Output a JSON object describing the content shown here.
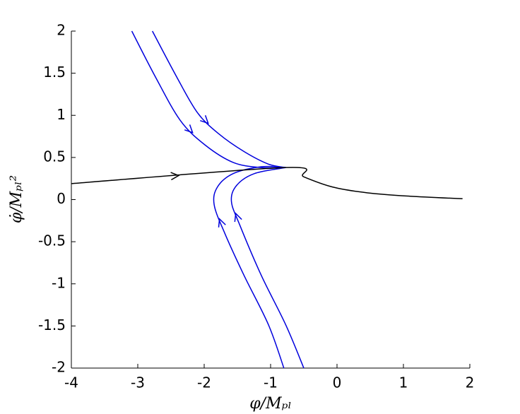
{
  "chart_data": {
    "type": "line",
    "xlabel": "φ/Mₚₗ",
    "ylabel": "φ̇/Mₚₗ²",
    "xlim": [
      -4,
      2
    ],
    "xticks": [
      -4,
      -3,
      -2,
      -1,
      0,
      1,
      2
    ],
    "ylim": [
      -2,
      2
    ],
    "yticks": [
      -2,
      -1.5,
      -1,
      -0.5,
      0,
      0.5,
      1,
      1.5,
      2
    ],
    "series": [
      {
        "color": "#0000dd",
        "x": [
          -3.09,
          -2.73,
          -2.36,
          -1.99,
          -1.56,
          -1.14,
          -0.77
        ],
        "values": [
          2,
          1.45,
          0.94,
          0.65,
          0.44,
          0.38,
          0.38
        ]
      },
      {
        "color": "#0000dd",
        "x": [
          -2.78,
          -2.41,
          -2.1,
          -1.78,
          -1.4,
          -1.03,
          -0.77
        ],
        "values": [
          2,
          1.45,
          1.03,
          0.78,
          0.57,
          0.42,
          0.38
        ]
      },
      {
        "color": "#0000dd",
        "x": [
          -0.8,
          -1.03,
          -1.4,
          -1.69,
          -1.85,
          -1.8,
          -1.56,
          -1.14,
          -0.77
        ],
        "values": [
          -2,
          -1.49,
          -0.9,
          -0.4,
          -0.06,
          0.15,
          0.31,
          0.39,
          0.38
        ]
      },
      {
        "color": "#0000dd",
        "x": [
          -0.5,
          -0.77,
          -1.14,
          -1.46,
          -1.59,
          -1.51,
          -1.24,
          -0.77
        ],
        "values": [
          -2,
          -1.49,
          -0.9,
          -0.31,
          -0.02,
          0.17,
          0.31,
          0.38
        ]
      },
      {
        "color": "#000000",
        "x": [
          -4,
          -0.77,
          -0.5,
          -0.07,
          0.46,
          1.1,
          1.89
        ],
        "values": [
          0.19,
          0.38,
          0.27,
          0.15,
          0.08,
          0.04,
          0.01
        ]
      }
    ]
  }
}
